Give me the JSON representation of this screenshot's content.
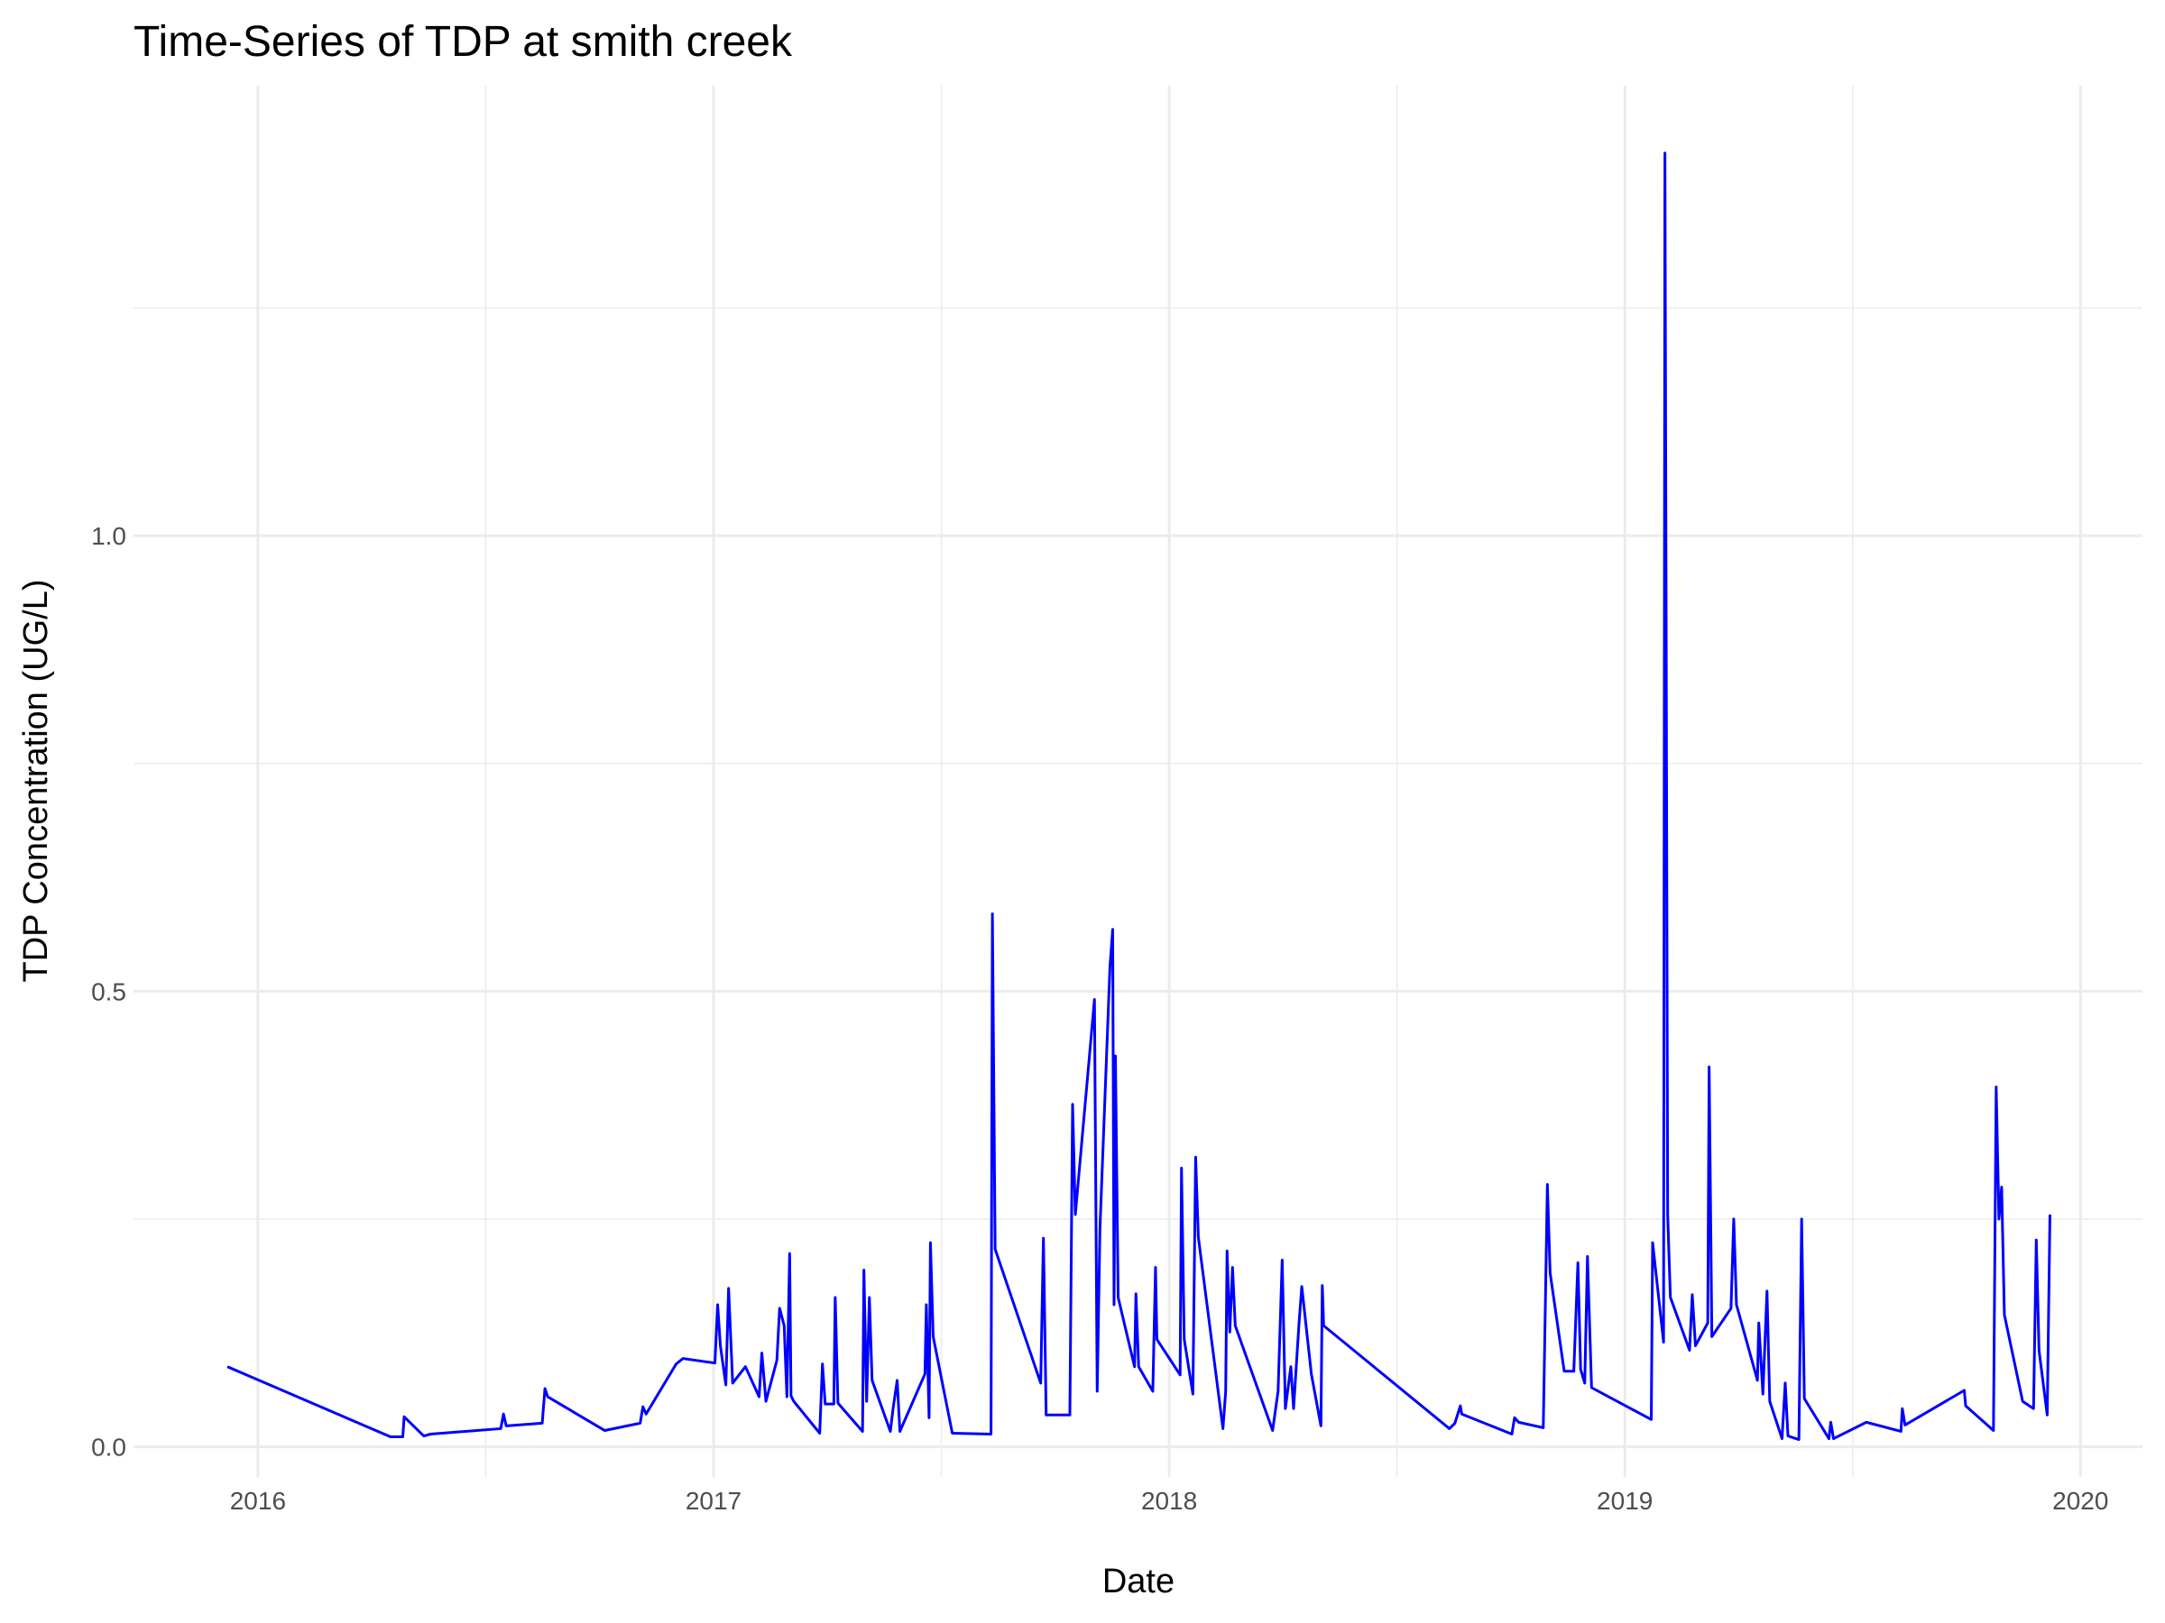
{
  "chart_data": {
    "type": "line",
    "title": "Time-Series of TDP at smith creek",
    "x_label": "Date",
    "y_label": "TDP Concentration (UG/L)",
    "color": "#0000ff",
    "grid": true,
    "xlim": [
      2015.727,
      2020.136
    ],
    "ylim": [
      -0.033,
      1.494
    ],
    "xticks": [
      2016,
      2017,
      2018,
      2019,
      2020
    ],
    "yticks": [
      {
        "value": 0,
        "label": "0.0"
      },
      0.5,
      {
        "value": 1,
        "label": "1.0"
      }
    ],
    "x": [
      2015.933,
      2016.291,
      2016.318,
      2016.321,
      2016.364,
      2016.379,
      2016.533,
      2016.539,
      2016.545,
      2016.624,
      2016.63,
      2016.636,
      2016.761,
      2016.839,
      2016.845,
      2016.852,
      2016.918,
      2016.933,
      2017.003,
      2017.009,
      2017.015,
      2017.027,
      2017.033,
      2017.042,
      2017.07,
      2017.1,
      2017.106,
      2017.115,
      2017.139,
      2017.145,
      2017.155,
      2017.161,
      2017.167,
      2017.17,
      2017.176,
      2017.233,
      2017.239,
      2017.245,
      2017.264,
      2017.267,
      2017.273,
      2017.327,
      2017.33,
      2017.336,
      2017.342,
      2017.348,
      2017.388,
      2017.394,
      2017.403,
      2017.409,
      2017.464,
      2017.467,
      2017.473,
      2017.476,
      2017.482,
      2017.524,
      2017.609,
      2017.612,
      2017.618,
      2017.718,
      2017.724,
      2017.73,
      2017.782,
      2017.788,
      2017.794,
      2017.836,
      2017.842,
      2017.848,
      2017.87,
      2017.876,
      2017.879,
      2017.882,
      2017.888,
      2017.924,
      2017.927,
      2017.933,
      2017.964,
      2017.97,
      2017.973,
      2018.024,
      2018.027,
      2018.033,
      2018.052,
      2018.058,
      2018.064,
      2018.118,
      2018.124,
      2018.127,
      2018.133,
      2018.139,
      2018.145,
      2018.227,
      2018.239,
      2018.248,
      2018.255,
      2018.267,
      2018.273,
      2018.285,
      2018.291,
      2018.312,
      2018.333,
      2018.336,
      2018.339,
      2018.615,
      2018.627,
      2018.639,
      2018.642,
      2018.752,
      2018.758,
      2018.767,
      2018.821,
      2018.83,
      2018.836,
      2018.867,
      2018.888,
      2018.897,
      2018.903,
      2018.912,
      2018.918,
      2018.927,
      2019.058,
      2019.061,
      2019.085,
      2019.088,
      2019.094,
      2019.1,
      2019.142,
      2019.148,
      2019.155,
      2019.182,
      2019.185,
      2019.191,
      2019.233,
      2019.239,
      2019.245,
      2019.291,
      2019.294,
      2019.303,
      2019.312,
      2019.318,
      2019.345,
      2019.352,
      2019.358,
      2019.382,
      2019.388,
      2019.394,
      2019.448,
      2019.452,
      2019.458,
      2019.53,
      2019.606,
      2019.609,
      2019.615,
      2019.745,
      2019.748,
      2019.809,
      2019.815,
      2019.821,
      2019.827,
      2019.833,
      2019.873,
      2019.897,
      2019.903,
      2019.909,
      2019.927,
      2019.933
    ],
    "values": [
      0.088,
      0.011,
      0.011,
      0.033,
      0.012,
      0.014,
      0.02,
      0.036,
      0.023,
      0.026,
      0.064,
      0.055,
      0.018,
      0.026,
      0.044,
      0.036,
      0.091,
      0.097,
      0.092,
      0.156,
      0.111,
      0.068,
      0.174,
      0.07,
      0.088,
      0.055,
      0.103,
      0.05,
      0.095,
      0.152,
      0.133,
      0.055,
      0.212,
      0.056,
      0.05,
      0.015,
      0.091,
      0.047,
      0.047,
      0.164,
      0.048,
      0.017,
      0.194,
      0.05,
      0.164,
      0.073,
      0.017,
      0.042,
      0.073,
      0.017,
      0.08,
      0.156,
      0.032,
      0.224,
      0.121,
      0.015,
      0.014,
      0.585,
      0.217,
      0.07,
      0.229,
      0.035,
      0.035,
      0.376,
      0.255,
      0.491,
      0.061,
      0.239,
      0.527,
      0.568,
      0.156,
      0.429,
      0.164,
      0.088,
      0.168,
      0.088,
      0.061,
      0.197,
      0.118,
      0.079,
      0.306,
      0.118,
      0.058,
      0.318,
      0.23,
      0.02,
      0.061,
      0.215,
      0.126,
      0.197,
      0.133,
      0.018,
      0.061,
      0.205,
      0.042,
      0.088,
      0.042,
      0.136,
      0.176,
      0.08,
      0.023,
      0.177,
      0.133,
      0.02,
      0.026,
      0.045,
      0.036,
      0.014,
      0.032,
      0.027,
      0.021,
      0.288,
      0.191,
      0.083,
      0.083,
      0.202,
      0.085,
      0.07,
      0.209,
      0.065,
      0.03,
      0.224,
      0.115,
      1.42,
      0.255,
      0.164,
      0.106,
      0.167,
      0.111,
      0.136,
      0.417,
      0.121,
      0.152,
      0.25,
      0.156,
      0.073,
      0.136,
      0.058,
      0.171,
      0.05,
      0.009,
      0.07,
      0.012,
      0.008,
      0.25,
      0.053,
      0.009,
      0.027,
      0.009,
      0.027,
      0.017,
      0.042,
      0.024,
      0.062,
      0.045,
      0.018,
      0.395,
      0.25,
      0.285,
      0.145,
      0.05,
      0.042,
      0.227,
      0.106,
      0.035,
      0.255
    ]
  }
}
